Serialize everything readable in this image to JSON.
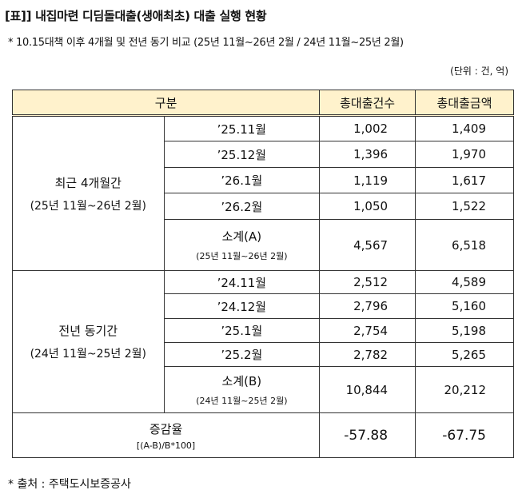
{
  "header": {
    "title": "[표]] 내집마련 디딤돌대출(생애최초) 대출 실행 현황",
    "subtitle": "* 10.15대책 이후 4개월 및 전년 동기 비교 (25년 11월~26년 2월 / 24년 11월~25년 2월)",
    "unit": "(단위 : 건, 억)"
  },
  "table": {
    "columns": [
      "구분",
      "총대출건수",
      "총대출금액"
    ],
    "groups": [
      {
        "label": "최근 4개월간",
        "sublabel": "(25년 11월~26년 2월)",
        "rows": [
          {
            "period": "’25.11월",
            "count": "1,002",
            "amount": "1,409"
          },
          {
            "period": "’25.12월",
            "count": "1,396",
            "amount": "1,970"
          },
          {
            "period": "’26.1월",
            "count": "1,119",
            "amount": "1,617"
          },
          {
            "period": "’26.2월",
            "count": "1,050",
            "amount": "1,522"
          }
        ],
        "subtotal": {
          "label": "소계(A)",
          "sublabel": "(25년 11월~26년 2월)",
          "count": "4,567",
          "amount": "6,518"
        }
      },
      {
        "label": "전년 동기간",
        "sublabel": "(24년 11월~25년 2월)",
        "rows": [
          {
            "period": "’24.11월",
            "count": "2,512",
            "amount": "4,589"
          },
          {
            "period": "’24.12월",
            "count": "2,796",
            "amount": "5,160"
          },
          {
            "period": "’25.1월",
            "count": "2,754",
            "amount": "5,198"
          },
          {
            "period": "’25.2월",
            "count": "2,782",
            "amount": "5,265"
          }
        ],
        "subtotal": {
          "label": "소계(B)",
          "sublabel": "(24년 11월~25년 2월)",
          "count": "10,844",
          "amount": "20,212"
        }
      }
    ],
    "change": {
      "label": "증감율",
      "formula": "[(A-B)/B*100]",
      "count": "-57.88",
      "amount": "-67.75"
    }
  },
  "footer": {
    "source": "* 출처 : 주택도시보증공사"
  }
}
